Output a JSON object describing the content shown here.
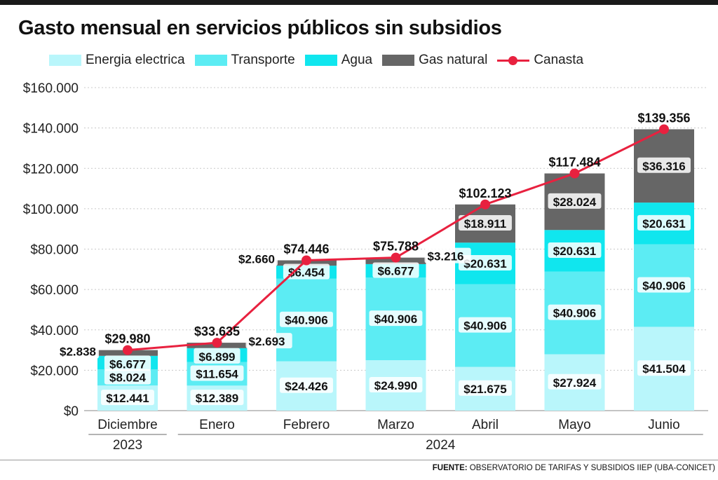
{
  "title": "Gasto mensual en servicios públicos sin subsidios",
  "legend": {
    "energia": "Energia electrica",
    "transporte": "Transporte",
    "agua": "Agua",
    "gas": "Gas natural",
    "canasta": "Canasta"
  },
  "colors": {
    "energia": "#b9f6fb",
    "transporte": "#5cecf3",
    "agua": "#10e6ee",
    "gas": "#666666",
    "canasta": "#e8213f",
    "grid": "#c8c8c8",
    "bar_label_bg": "#ffffff",
    "bar_label_border": "#888888"
  },
  "source": {
    "prefix": "FUENTE:",
    "text": "OBSERVATORIO DE TARIFAS Y SUBSIDIOS IIEP (UBA-CONICET)"
  },
  "chart_data": {
    "type": "bar",
    "stacked": true,
    "title": "Gasto mensual en servicios públicos sin subsidios",
    "categories": [
      "Diciembre",
      "Enero",
      "Febrero",
      "Marzo",
      "Abril",
      "Mayo",
      "Junio"
    ],
    "year_groups": [
      {
        "label": "2023",
        "from": 0,
        "to": 0
      },
      {
        "label": "2024",
        "from": 1,
        "to": 6
      }
    ],
    "ylim": [
      0,
      160000
    ],
    "yticks": [
      0,
      20000,
      40000,
      60000,
      80000,
      100000,
      120000,
      140000,
      160000
    ],
    "ytick_labels": [
      "$0",
      "$20.000",
      "$40.000",
      "$60.000",
      "$80.000",
      "$100.000",
      "$120.000",
      "$140.000",
      "$160.000"
    ],
    "grid": true,
    "legend_position": "top",
    "series": [
      {
        "key": "energia",
        "name": "Energia electrica",
        "values": [
          12441,
          12389,
          24426,
          24990,
          21675,
          27924,
          41504
        ],
        "labels": [
          "$12.441",
          "$12.389",
          "$24.426",
          "$24.990",
          "$21.675",
          "$27.924",
          "$41.504"
        ]
      },
      {
        "key": "transporte",
        "name": "Transporte",
        "values": [
          8024,
          11654,
          40906,
          40906,
          40906,
          40906,
          40906
        ],
        "labels": [
          "$8.024",
          "$11.654",
          "$40.906",
          "$40.906",
          "$40.906",
          "$40.906",
          "$40.906"
        ]
      },
      {
        "key": "agua",
        "name": "Agua",
        "values": [
          6677,
          6899,
          6454,
          6677,
          20631,
          20631,
          20631
        ],
        "labels": [
          "$6.677",
          "$6.899",
          "$6.454",
          "$6.677",
          "$20.631",
          "$20.631",
          "$20.631"
        ]
      },
      {
        "key": "gas",
        "name": "Gas natural",
        "values": [
          2838,
          2693,
          2660,
          3216,
          18911,
          28024,
          36316
        ],
        "labels": [
          "$2.838",
          "$2.693",
          "$2.660",
          "$3.216",
          "$18.911",
          "$28.024",
          "$36.316"
        ]
      }
    ],
    "line": {
      "key": "canasta",
      "name": "Canasta",
      "values": [
        29980,
        33635,
        74446,
        75788,
        102123,
        117484,
        139356
      ],
      "labels": [
        "$29.980",
        "$33.635",
        "$74.446",
        "$75.788",
        "$102.123",
        "$117.484",
        "$139.356"
      ]
    }
  }
}
